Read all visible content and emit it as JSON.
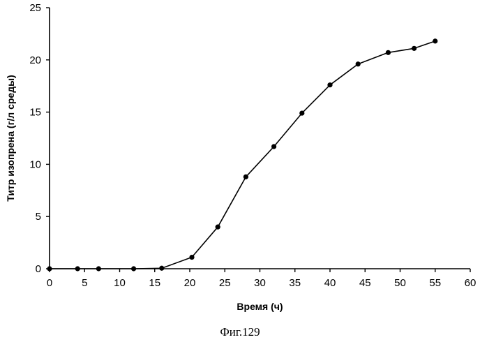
{
  "caption": "Фиг.129",
  "chart_data": {
    "type": "line",
    "title": "",
    "xlabel": "Время (ч)",
    "ylabel": "Титр изопрена (г/л среды)",
    "xlim": [
      0,
      60
    ],
    "ylim": [
      0,
      25
    ],
    "xticks": [
      0,
      5,
      10,
      15,
      20,
      25,
      30,
      35,
      40,
      45,
      50,
      55,
      60
    ],
    "yticks": [
      0,
      5,
      10,
      15,
      20,
      25
    ],
    "grid": false,
    "legend": "none",
    "series": [
      {
        "x": [
          0,
          4,
          7,
          12,
          16,
          20.3,
          24,
          28,
          32,
          36,
          40,
          44,
          48.3,
          52,
          55
        ],
        "y": [
          0,
          0,
          0,
          0,
          0.05,
          1.1,
          4.0,
          8.8,
          11.7,
          14.9,
          17.6,
          19.6,
          20.7,
          21.1,
          21.8
        ],
        "color": "#000000"
      }
    ]
  }
}
